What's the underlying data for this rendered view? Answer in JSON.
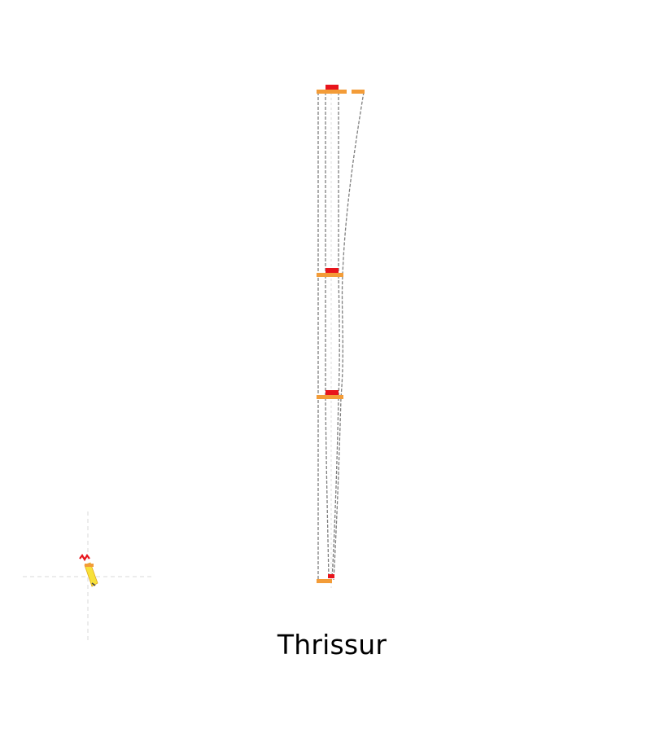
{
  "station": {
    "name": "Thrissur"
  },
  "colors": {
    "background": "#ffffff",
    "platform": "#f39c38",
    "marker": "#e8141c",
    "track": "#7f7f7f",
    "guide": "#d9d9d9",
    "compass_accent": "#f7e13a"
  },
  "icons": {
    "compass": "north-arrow-icon"
  }
}
